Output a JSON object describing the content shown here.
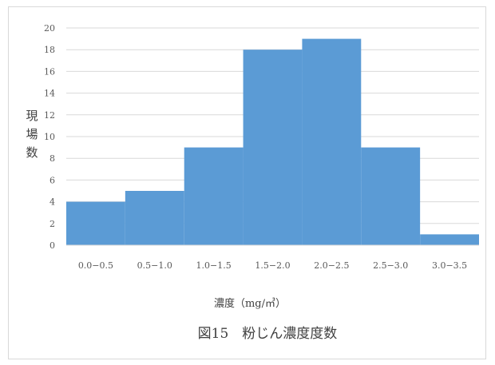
{
  "chart_data": {
    "type": "bar",
    "categories": [
      "0.0−0.5",
      "0.5−1.0",
      "1.0−1.5",
      "1.5−2.0",
      "2.0−2.5",
      "2.5−3.0",
      "3.0−3.5"
    ],
    "values": [
      4,
      5,
      9,
      18,
      19,
      9,
      1
    ],
    "ylabel": "現場数",
    "xlabel": "濃度（mg/㎥）",
    "caption": "図15　粉じん濃度度数",
    "ylim": [
      0,
      20
    ],
    "yticks": [
      0,
      2,
      4,
      6,
      8,
      10,
      12,
      14,
      16,
      18,
      20
    ],
    "grid": true,
    "legend": "none",
    "bar_color": "#5b9bd5"
  }
}
